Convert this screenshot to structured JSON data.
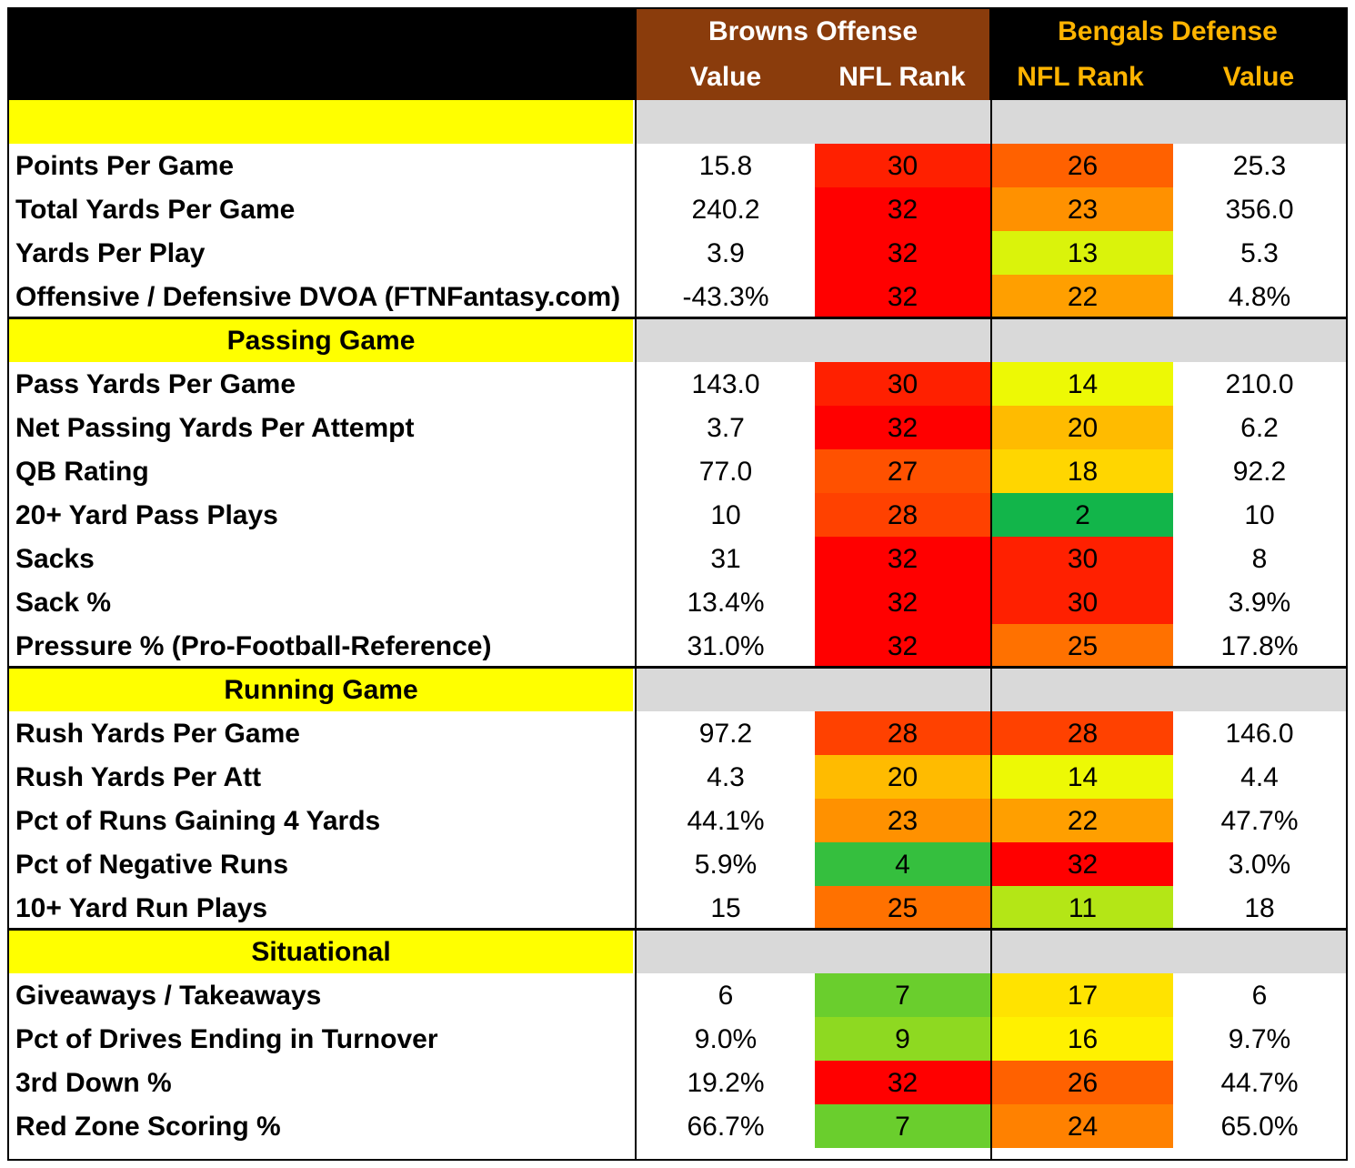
{
  "header": {
    "browns_title": "Browns Offense",
    "bengals_title": "Bengals Defense",
    "browns_value": "Value",
    "browns_rank": "NFL Rank",
    "bengals_rank": "NFL Rank",
    "bengals_value": "Value"
  },
  "colors": {
    "browns_header_bg": "#8a3c0c",
    "bengals_header_text": "#ffb400",
    "section_bg": "#ffff00",
    "section_gray": "#d9d9d9"
  },
  "sections": [
    {
      "title": "",
      "rows": [
        {
          "label": "Points Per Game",
          "off_value": "15.8",
          "off_rank": "30",
          "def_rank": "26",
          "def_value": "25.3"
        },
        {
          "label": "Total Yards Per Game",
          "off_value": "240.2",
          "off_rank": "32",
          "def_rank": "23",
          "def_value": "356.0"
        },
        {
          "label": "Yards Per Play",
          "off_value": "3.9",
          "off_rank": "32",
          "def_rank": "13",
          "def_value": "5.3"
        },
        {
          "label": "Offensive / Defensive DVOA (FTNFantasy.com)",
          "off_value": "-43.3%",
          "off_rank": "32",
          "def_rank": "22",
          "def_value": "4.8%"
        }
      ]
    },
    {
      "title": "Passing Game",
      "rows": [
        {
          "label": "Pass Yards Per Game",
          "off_value": "143.0",
          "off_rank": "30",
          "def_rank": "14",
          "def_value": "210.0"
        },
        {
          "label": "Net Passing Yards Per Attempt",
          "off_value": "3.7",
          "off_rank": "32",
          "def_rank": "20",
          "def_value": "6.2"
        },
        {
          "label": "QB Rating",
          "off_value": "77.0",
          "off_rank": "27",
          "def_rank": "18",
          "def_value": "92.2"
        },
        {
          "label": "20+ Yard Pass Plays",
          "off_value": "10",
          "off_rank": "28",
          "def_rank": "2",
          "def_value": "10"
        },
        {
          "label": "Sacks",
          "off_value": "31",
          "off_rank": "32",
          "def_rank": "30",
          "def_value": "8"
        },
        {
          "label": "Sack %",
          "off_value": "13.4%",
          "off_rank": "32",
          "def_rank": "30",
          "def_value": "3.9%"
        },
        {
          "label": "Pressure % (Pro-Football-Reference)",
          "off_value": "31.0%",
          "off_rank": "32",
          "def_rank": "25",
          "def_value": "17.8%"
        }
      ]
    },
    {
      "title": "Running Game",
      "rows": [
        {
          "label": "Rush Yards Per Game",
          "off_value": "97.2",
          "off_rank": "28",
          "def_rank": "28",
          "def_value": "146.0"
        },
        {
          "label": "Rush Yards Per Att",
          "off_value": "4.3",
          "off_rank": "20",
          "def_rank": "14",
          "def_value": "4.4"
        },
        {
          "label": "Pct of Runs Gaining 4 Yards",
          "off_value": "44.1%",
          "off_rank": "23",
          "def_rank": "22",
          "def_value": "47.7%"
        },
        {
          "label": "Pct of Negative Runs",
          "off_value": "5.9%",
          "off_rank": "4",
          "def_rank": "32",
          "def_value": "3.0%"
        },
        {
          "label": "10+ Yard Run Plays",
          "off_value": "15",
          "off_rank": "25",
          "def_rank": "11",
          "def_value": "18"
        }
      ]
    },
    {
      "title": "Situational",
      "rows": [
        {
          "label": "Giveaways / Takeaways",
          "off_value": "6",
          "off_rank": "7",
          "def_rank": "17",
          "def_value": "6"
        },
        {
          "label": "Pct of Drives Ending in Turnover",
          "off_value": "9.0%",
          "off_rank": "9",
          "def_rank": "16",
          "def_value": "9.7%"
        },
        {
          "label": "3rd Down %",
          "off_value": "19.2%",
          "off_rank": "32",
          "def_rank": "26",
          "def_value": "44.7%"
        },
        {
          "label": "Red Zone Scoring %",
          "off_value": "66.7%",
          "off_rank": "7",
          "def_rank": "24",
          "def_value": "65.0%"
        }
      ]
    }
  ]
}
